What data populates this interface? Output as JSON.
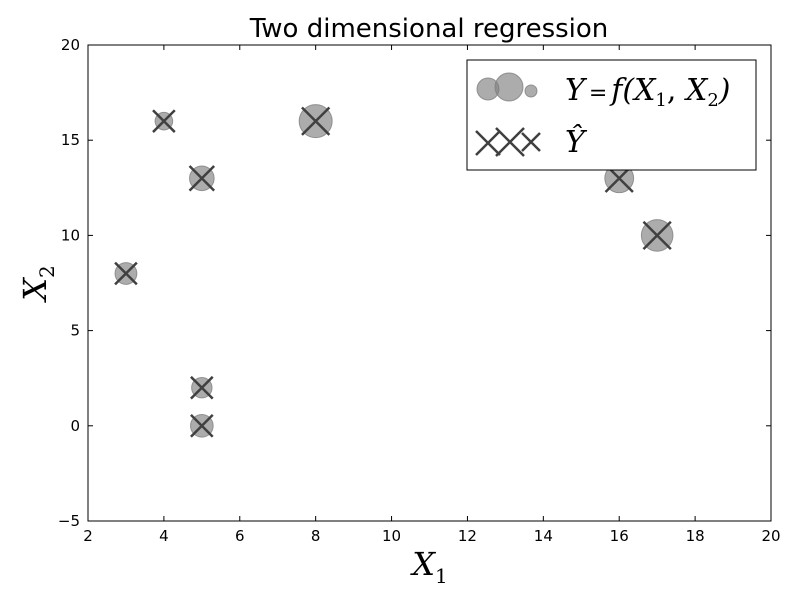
{
  "chart_data": {
    "type": "scatter",
    "title": "Two dimensional regression",
    "xlabel": {
      "base": "X",
      "sub": "1"
    },
    "ylabel": {
      "base": "X",
      "sub": "2"
    },
    "xlim": [
      2,
      20
    ],
    "ylim": [
      -5,
      20
    ],
    "xticks": [
      2,
      4,
      6,
      8,
      10,
      12,
      14,
      16,
      18,
      20
    ],
    "yticks": [
      -5,
      0,
      5,
      10,
      15,
      20
    ],
    "grid": false,
    "legend_position": "top-right",
    "series": [
      {
        "name": "Y=f(X1,X2)",
        "label_parts": {
          "a": "Y",
          "b": "=",
          "c": "f(",
          "d": "X",
          "e": "1",
          "f": ", ",
          "g": "X",
          "h": "2",
          "i": ")"
        },
        "marker": "circle",
        "color": "#808080",
        "points": [
          {
            "x": 3,
            "y": 8,
            "size": 0.35
          },
          {
            "x": 4,
            "y": 16,
            "size": 0.2
          },
          {
            "x": 5,
            "y": 13,
            "size": 0.45
          },
          {
            "x": 5,
            "y": 2,
            "size": 0.3
          },
          {
            "x": 5,
            "y": 0,
            "size": 0.38
          },
          {
            "x": 8,
            "y": 16,
            "size": 0.75
          },
          {
            "x": 16,
            "y": 13,
            "size": 0.6
          },
          {
            "x": 17,
            "y": 10,
            "size": 0.7
          }
        ]
      },
      {
        "name": "Ŷ",
        "label_parts": {
          "a": "Ŷ"
        },
        "marker": "x",
        "color": "#404040",
        "points": [
          {
            "x": 3,
            "y": 8,
            "size": 0.35
          },
          {
            "x": 4,
            "y": 16,
            "size": 0.35
          },
          {
            "x": 5,
            "y": 13,
            "size": 0.45
          },
          {
            "x": 5,
            "y": 2,
            "size": 0.35
          },
          {
            "x": 5,
            "y": 0,
            "size": 0.35
          },
          {
            "x": 8,
            "y": 16,
            "size": 0.55
          },
          {
            "x": 16,
            "y": 13,
            "size": 0.55
          },
          {
            "x": 17,
            "y": 10,
            "size": 0.55
          }
        ]
      }
    ]
  }
}
